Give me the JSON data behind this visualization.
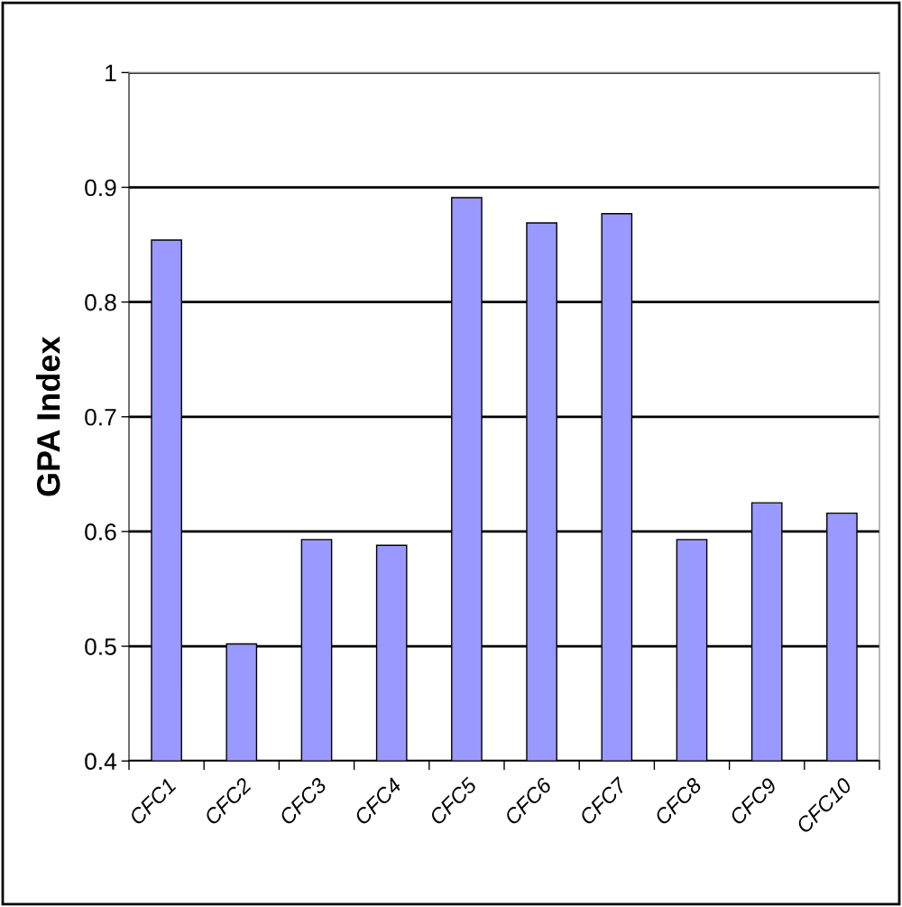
{
  "chart_data": {
    "type": "bar",
    "ylabel": "GPA Index",
    "categories": [
      "CFC1",
      "CFC2",
      "CFC3",
      "CFC4",
      "CFC5",
      "CFC6",
      "CFC7",
      "CFC8",
      "CFC9",
      "CFC10"
    ],
    "values": [
      0.854,
      0.502,
      0.593,
      0.588,
      0.891,
      0.869,
      0.877,
      0.593,
      0.625,
      0.616
    ],
    "color": "#9999ff",
    "ylim": [
      0.4,
      1
    ],
    "yticks": [
      0.4,
      0.5,
      0.6,
      0.7,
      0.8,
      0.9,
      1
    ],
    "grid": "y"
  }
}
